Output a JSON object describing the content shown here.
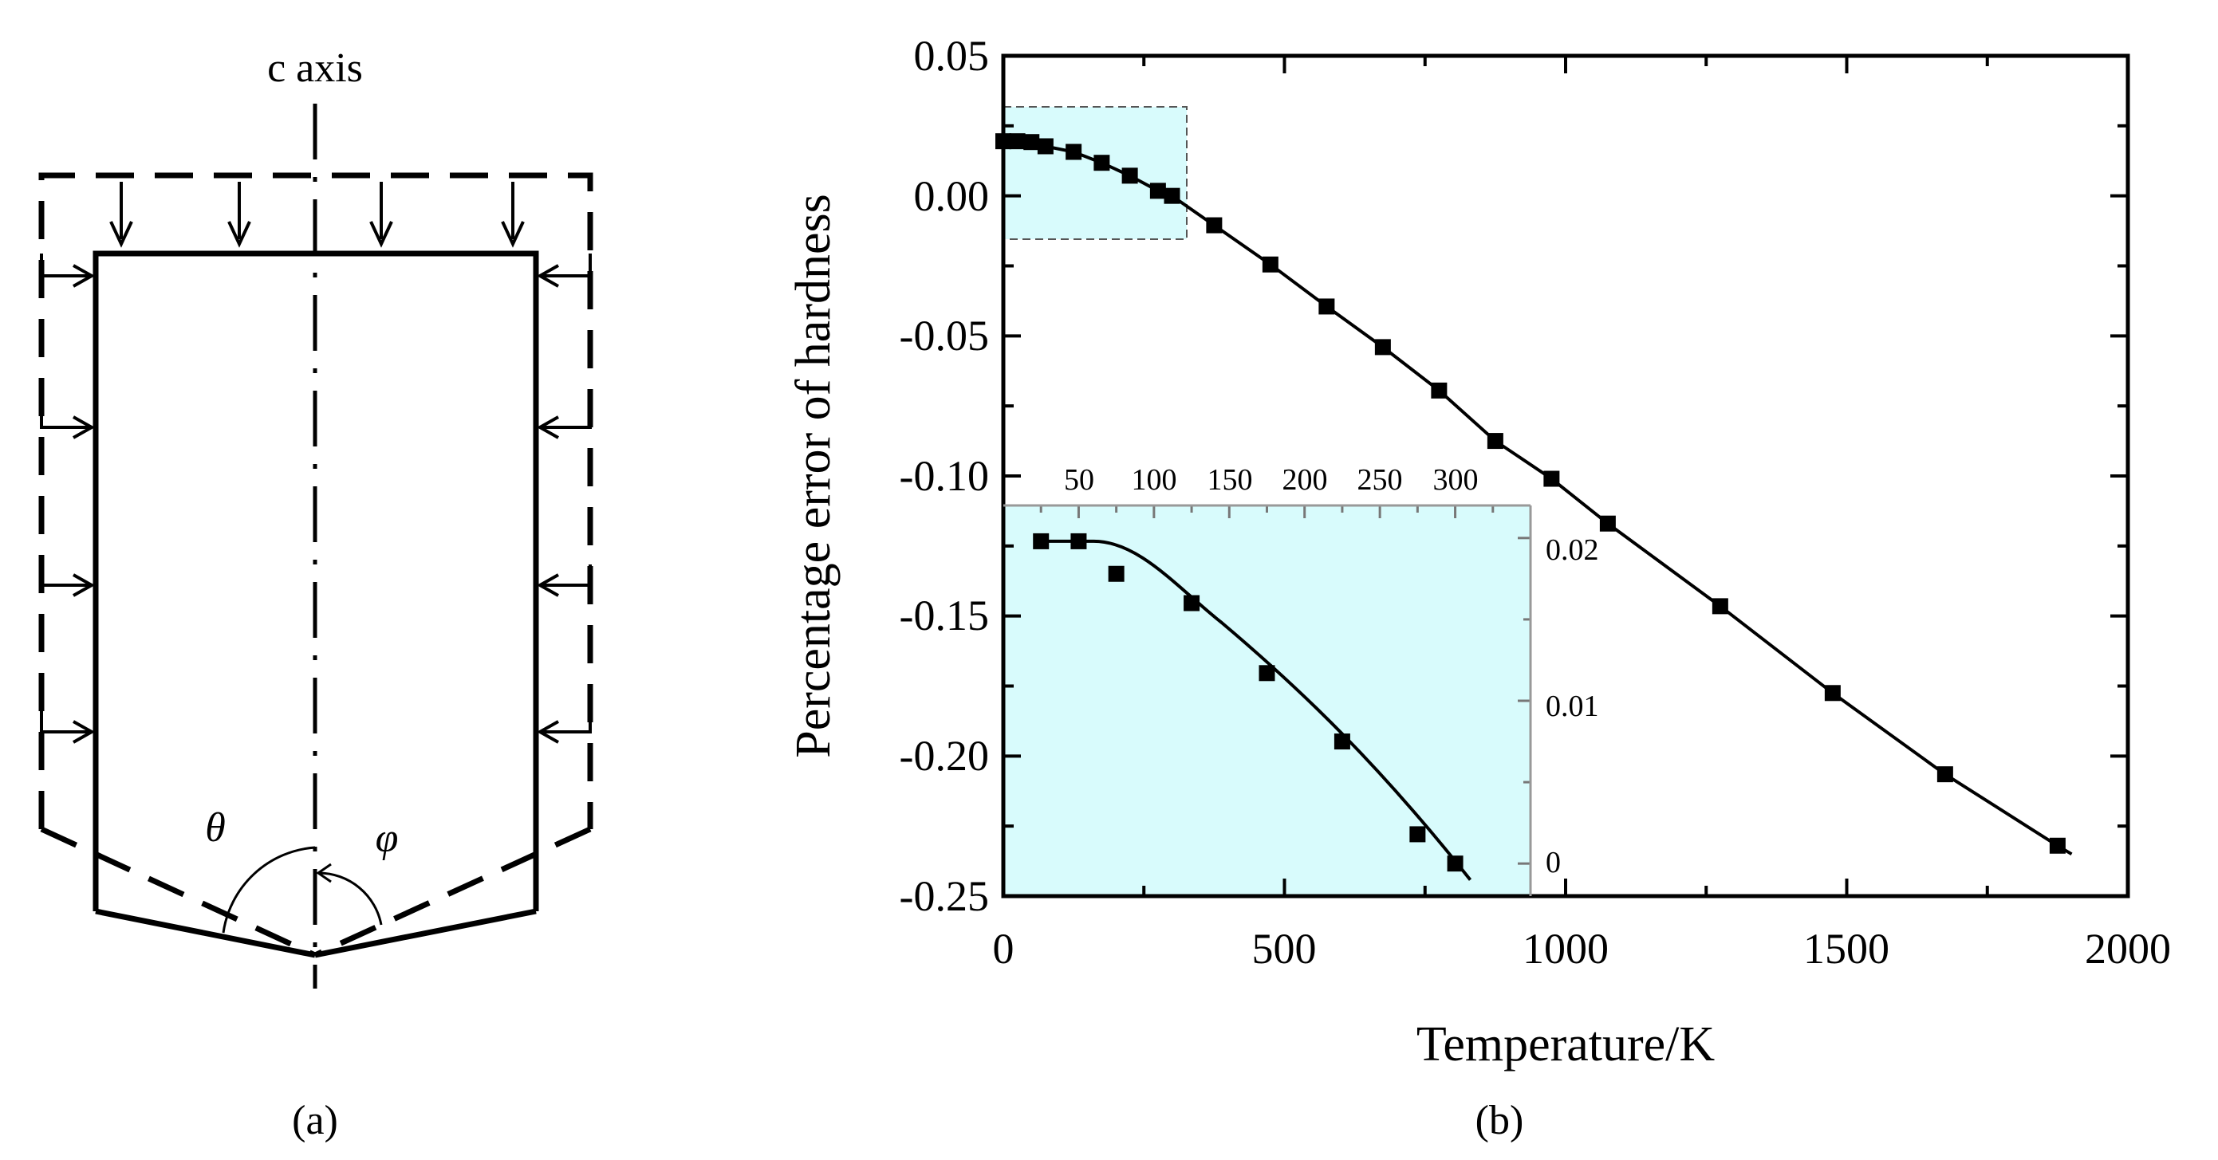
{
  "panel_a": {
    "axis_label": "c axis",
    "theta_symbol": "θ",
    "phi_symbol": "φ",
    "caption": "(a)"
  },
  "panel_b": {
    "caption": "(b)",
    "chart_data": {
      "type": "line",
      "title": "",
      "xlabel": "Temperature/K",
      "ylabel": "Percentage error of hardness",
      "xlim": [
        0,
        2000
      ],
      "ylim": [
        -0.25,
        0.05
      ],
      "x_ticks": [
        "0",
        "500",
        "1000",
        "1500",
        "2000"
      ],
      "y_ticks": [
        "0.05",
        "0.00",
        "-0.05",
        "-0.10",
        "-0.15",
        "-0.20",
        "-0.25"
      ],
      "grid": false,
      "series": [
        {
          "name": "Percentage error of hardness",
          "marker": "square",
          "x": [
            0,
            25,
            50,
            75,
            125,
            175,
            225,
            275,
            300,
            375,
            475,
            575,
            675,
            775,
            875,
            975,
            1075,
            1275,
            1475,
            1675,
            1875
          ],
          "y": [
            0.0195,
            0.0195,
            0.0192,
            0.0177,
            0.0157,
            0.0118,
            0.0072,
            0.0018,
            0.0,
            -0.0105,
            -0.0245,
            -0.0395,
            -0.054,
            -0.0695,
            -0.0875,
            -0.101,
            -0.117,
            -0.1465,
            -0.1775,
            -0.2065,
            -0.232
          ]
        }
      ],
      "inset": {
        "xlim": [
          0,
          350
        ],
        "ylim": [
          -0.002,
          0.022
        ],
        "x_ticks": [
          "50",
          "100",
          "150",
          "200",
          "250",
          "300"
        ],
        "y_ticks": [
          "0.02",
          "0.01",
          "0"
        ],
        "highlight_color": "#d8fbfc",
        "series": {
          "x": [
            25,
            50,
            75,
            125,
            175,
            225,
            275,
            300
          ],
          "y": [
            0.0198,
            0.0198,
            0.0178,
            0.016,
            0.0117,
            0.0075,
            0.0018,
            0.0
          ]
        }
      }
    }
  }
}
